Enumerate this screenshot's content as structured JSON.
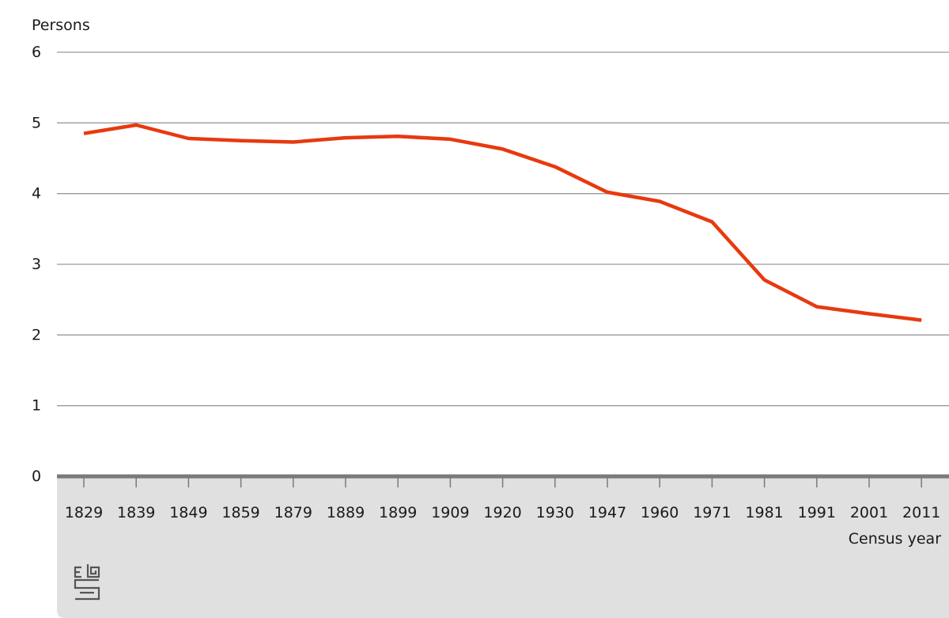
{
  "chart_data": {
    "type": "line",
    "ylabel": "Persons",
    "xlabel": "Census year",
    "ylim": [
      0,
      6
    ],
    "yticks": [
      0,
      1,
      2,
      3,
      4,
      5,
      6
    ],
    "grid": true,
    "categories": [
      "1829",
      "1839",
      "1849",
      "1859",
      "1879",
      "1889",
      "1899",
      "1909",
      "1920",
      "1930",
      "1947",
      "1960",
      "1971",
      "1981",
      "1991",
      "2001",
      "2011"
    ],
    "series": [
      {
        "values": [
          4.85,
          4.97,
          4.78,
          4.75,
          4.73,
          4.79,
          4.81,
          4.77,
          4.63,
          4.38,
          4.02,
          3.89,
          3.6,
          2.78,
          2.4,
          2.3,
          2.21
        ],
        "color": "#e8390e"
      }
    ]
  },
  "style": {
    "axis_band_color": "#e0e0e0",
    "grid_color": "#9a9a9a"
  },
  "logo": {
    "icon": "cbs-logo-icon"
  }
}
